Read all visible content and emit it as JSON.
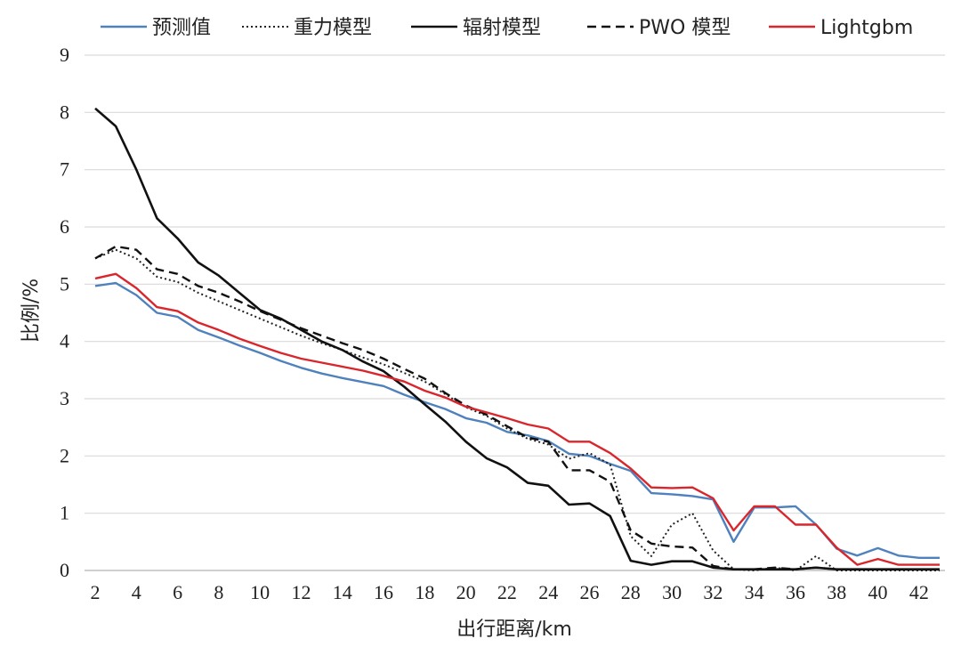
{
  "chart_data": {
    "type": "line",
    "xlabel": "出行距离/km",
    "ylabel": "比例/%",
    "xlim": [
      2,
      43
    ],
    "ylim": [
      0,
      9
    ],
    "xticks": [
      2,
      4,
      6,
      8,
      10,
      12,
      14,
      16,
      18,
      20,
      22,
      24,
      26,
      28,
      30,
      32,
      34,
      36,
      38,
      40,
      42
    ],
    "yticks": [
      0,
      1,
      2,
      3,
      4,
      5,
      6,
      7,
      8,
      9
    ],
    "grid": "horizontal",
    "legend_position": "top",
    "x": [
      2,
      3,
      4,
      5,
      6,
      7,
      8,
      9,
      10,
      11,
      12,
      13,
      14,
      15,
      16,
      17,
      18,
      19,
      20,
      21,
      22,
      23,
      24,
      25,
      26,
      27,
      28,
      29,
      30,
      31,
      32,
      33,
      34,
      35,
      36,
      37,
      38,
      39,
      40,
      41,
      42,
      43
    ],
    "series": [
      {
        "name": "预测值",
        "color": "#4f81bd",
        "dash": "solid",
        "values": [
          4.97,
          5.02,
          4.81,
          4.5,
          4.43,
          4.2,
          4.07,
          3.93,
          3.8,
          3.66,
          3.54,
          3.44,
          3.36,
          3.29,
          3.22,
          3.07,
          2.94,
          2.82,
          2.66,
          2.58,
          2.42,
          2.36,
          2.26,
          2.04,
          2.0,
          1.86,
          1.74,
          1.35,
          1.33,
          1.3,
          1.24,
          0.5,
          1.1,
          1.1,
          1.12,
          0.8,
          0.38,
          0.26,
          0.39,
          0.26,
          0.22,
          0.22
        ]
      },
      {
        "name": "重力模型",
        "color": "#222222",
        "dash": "dotted",
        "values": [
          5.45,
          5.6,
          5.45,
          5.13,
          5.04,
          4.85,
          4.7,
          4.55,
          4.4,
          4.25,
          4.1,
          3.97,
          3.85,
          3.72,
          3.6,
          3.45,
          3.3,
          3.08,
          2.85,
          2.7,
          2.48,
          2.3,
          2.2,
          1.95,
          2.05,
          1.85,
          0.6,
          0.25,
          0.8,
          1.0,
          0.35,
          0.02,
          0.0,
          0.05,
          0.0,
          0.25,
          0.0,
          0.0,
          0.0,
          0.0,
          0.0,
          0.0
        ]
      },
      {
        "name": "辐射模型",
        "color": "#111111",
        "dash": "solid",
        "values": [
          8.07,
          7.76,
          7.0,
          6.15,
          5.8,
          5.38,
          5.15,
          4.85,
          4.55,
          4.4,
          4.2,
          4.0,
          3.85,
          3.65,
          3.48,
          3.21,
          2.9,
          2.6,
          2.25,
          1.96,
          1.8,
          1.53,
          1.48,
          1.15,
          1.17,
          0.95,
          0.17,
          0.1,
          0.16,
          0.16,
          0.05,
          0.02,
          0.02,
          0.02,
          0.02,
          0.05,
          0.02,
          0.02,
          0.02,
          0.02,
          0.02,
          0.02
        ]
      },
      {
        "name": "PWO 模型",
        "color": "#111111",
        "dash": "dashed",
        "values": [
          5.45,
          5.66,
          5.6,
          5.26,
          5.18,
          4.97,
          4.85,
          4.7,
          4.53,
          4.38,
          4.23,
          4.1,
          3.97,
          3.85,
          3.7,
          3.52,
          3.35,
          3.1,
          2.88,
          2.72,
          2.52,
          2.32,
          2.25,
          1.75,
          1.75,
          1.55,
          0.7,
          0.47,
          0.42,
          0.4,
          0.08,
          0.02,
          0.02,
          0.05,
          0.02,
          0.05,
          0.02,
          0.02,
          0.02,
          0.02,
          0.02,
          0.02
        ]
      },
      {
        "name": "Lightgbm",
        "color": "#d9262c",
        "dash": "solid",
        "values": [
          5.1,
          5.18,
          4.93,
          4.6,
          4.53,
          4.33,
          4.2,
          4.05,
          3.92,
          3.8,
          3.7,
          3.63,
          3.56,
          3.49,
          3.4,
          3.3,
          3.14,
          3.02,
          2.86,
          2.76,
          2.66,
          2.55,
          2.48,
          2.25,
          2.25,
          2.05,
          1.78,
          1.45,
          1.44,
          1.45,
          1.26,
          0.7,
          1.12,
          1.12,
          0.8,
          0.8,
          0.4,
          0.1,
          0.2,
          0.1,
          0.1,
          0.1
        ]
      }
    ]
  }
}
